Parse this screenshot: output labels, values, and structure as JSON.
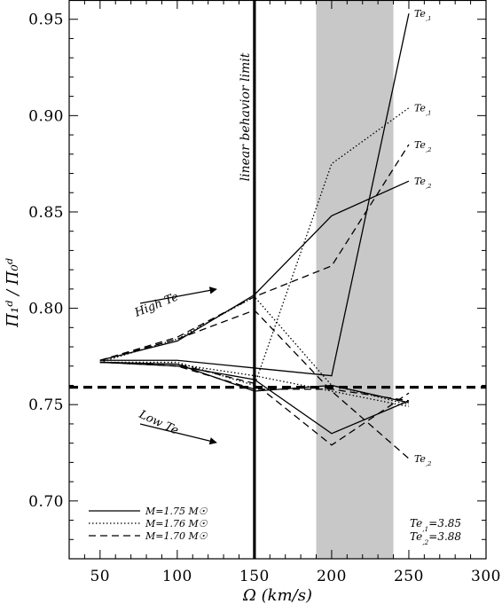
{
  "chart_data": {
    "type": "line",
    "xlabel": "Ω (km/s)",
    "ylabel": "Π₁ᵈ / Π₀ᵈ",
    "xlim": [
      30,
      300
    ],
    "ylim": [
      0.67,
      0.96
    ],
    "xticks": [
      "50",
      "100",
      "150",
      "200",
      "250",
      "300"
    ],
    "yticks": [
      "0.70",
      "0.75",
      "0.80",
      "0.85",
      "0.90",
      "0.95"
    ],
    "x": [
      50,
      100,
      150,
      200,
      250
    ],
    "shaded_band": [
      190,
      240
    ],
    "vertical_line": {
      "x": 150,
      "label": "linear behavior limit"
    },
    "horizontal_line": {
      "y": 0.759,
      "style": "dashed"
    },
    "series": [
      {
        "name": "M=1.75 M☉",
        "style": "solid",
        "Te": "Te,1",
        "values": [
          0.773,
          0.773,
          0.769,
          0.765,
          0.953
        ]
      },
      {
        "name": "M=1.75 M☉",
        "style": "solid",
        "Te": "Te,2",
        "values": [
          0.773,
          0.783,
          0.807,
          0.848,
          0.866
        ]
      },
      {
        "name": "M=1.75 M☉",
        "style": "solid",
        "Te": "low",
        "values": [
          0.772,
          0.77,
          0.763,
          0.735,
          0.752
        ]
      },
      {
        "name": "M=1.75 M☉",
        "style": "solid",
        "Te": "low",
        "values": [
          0.772,
          0.771,
          0.757,
          0.76,
          0.751
        ]
      },
      {
        "name": "M=1.76 M☉",
        "style": "dotted",
        "Te": "Te,1",
        "values": [
          0.772,
          0.772,
          0.76,
          0.875,
          0.904
        ]
      },
      {
        "name": "M=1.76 M☉",
        "style": "dotted",
        "Te": "Te,2",
        "values": [
          0.772,
          0.784,
          0.806,
          0.76,
          0.75
        ]
      },
      {
        "name": "M=1.76 M☉",
        "style": "dotted",
        "Te": "low",
        "values": [
          0.772,
          0.771,
          0.765,
          0.757,
          0.749
        ]
      },
      {
        "name": "M=1.70 M☉",
        "style": "dashed",
        "Te": "Te,2",
        "values": [
          0.773,
          0.785,
          0.806,
          0.822,
          0.885
        ]
      },
      {
        "name": "M=1.70 M☉",
        "style": "dashed",
        "Te": "Te,2",
        "values": [
          0.773,
          0.784,
          0.799,
          0.757,
          0.722
        ]
      },
      {
        "name": "M=1.70 M☉",
        "style": "dashed",
        "Te": "low",
        "values": [
          0.772,
          0.771,
          0.761,
          0.729,
          0.756
        ]
      },
      {
        "name": "M=1.70 M☉",
        "style": "dashed",
        "Te": "low",
        "values": [
          0.772,
          0.77,
          0.758,
          0.758,
          0.752
        ]
      }
    ],
    "line_labels": [
      {
        "text": "Te,1",
        "x": 250,
        "y": 0.953
      },
      {
        "text": "Te,1",
        "x": 250,
        "y": 0.904
      },
      {
        "text": "Te,2",
        "x": 250,
        "y": 0.885
      },
      {
        "text": "Te,2",
        "x": 250,
        "y": 0.866
      },
      {
        "text": "Te,2",
        "x": 250,
        "y": 0.722
      }
    ],
    "annotations": {
      "high": "High Te",
      "low": "Low Te"
    },
    "legend": {
      "placement": "bottom-left",
      "entries": [
        {
          "label": "M=1.75 M☉",
          "style": "solid"
        },
        {
          "label": "M=1.76 M☉",
          "style": "dotted"
        },
        {
          "label": "M=1.70 M☉",
          "style": "dashed"
        }
      ]
    },
    "te_values": [
      "Te,1=3.85",
      "Te,2=3.88"
    ]
  }
}
